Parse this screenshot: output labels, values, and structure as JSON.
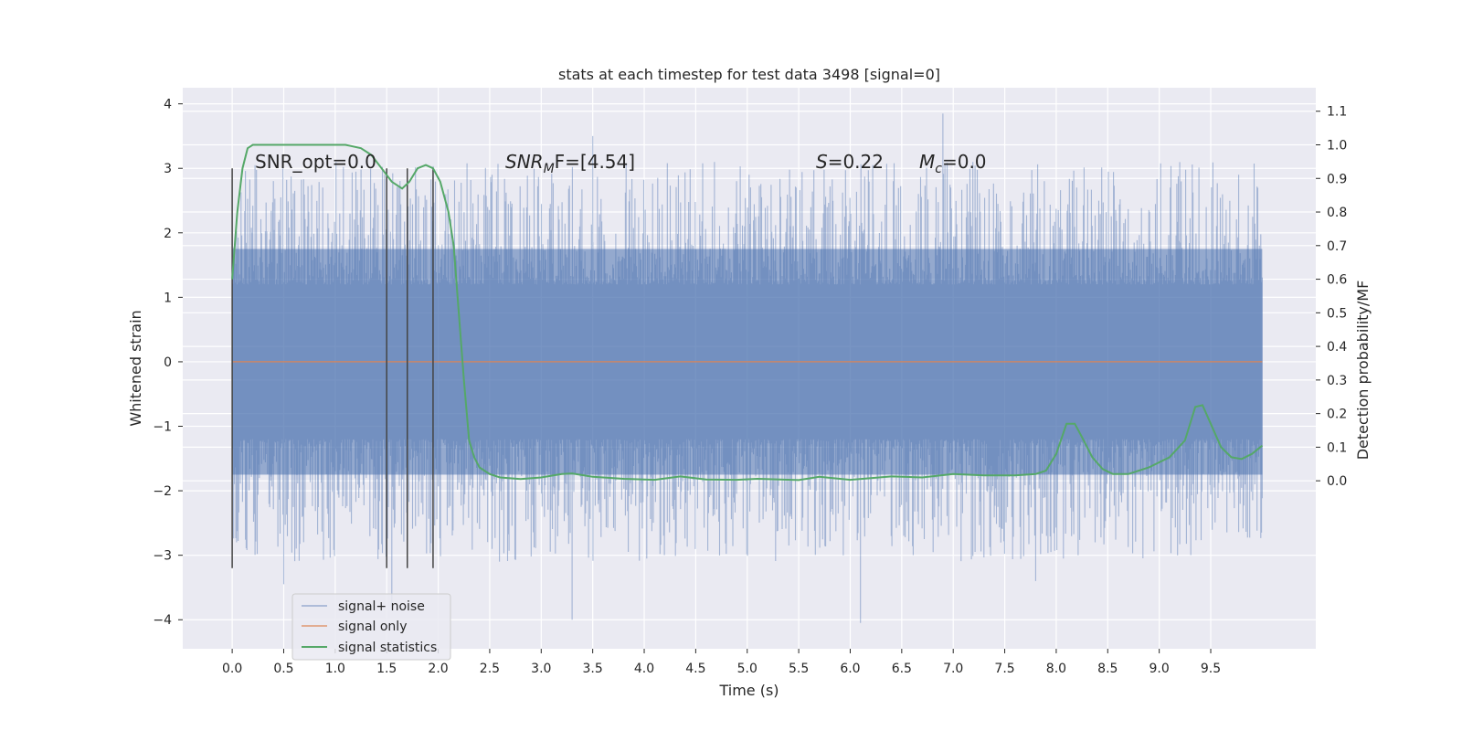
{
  "chart_data": {
    "type": "line",
    "title": "stats at each timestep for test data 3498 [signal=0]",
    "xlabel": "Time (s)",
    "ylabel": "Whitened strain",
    "ylabel_right": "Detection probability/MF",
    "xlim": [
      -0.48,
      10.52
    ],
    "ylim": [
      -4.45,
      4.25
    ],
    "ylim_right": [
      -0.5,
      1.17
    ],
    "x_ticks": [
      "0.0",
      "0.5",
      "1.0",
      "1.5",
      "2.0",
      "2.5",
      "3.0",
      "3.5",
      "4.0",
      "4.5",
      "5.0",
      "5.5",
      "6.0",
      "6.5",
      "7.0",
      "7.5",
      "8.0",
      "8.5",
      "9.0",
      "9.5"
    ],
    "y_ticks": [
      "4",
      "3",
      "2",
      "1",
      "0",
      "−1",
      "−2",
      "−3",
      "−4"
    ],
    "y_ticks_right": [
      "1.1",
      "1.0",
      "0.9",
      "0.8",
      "0.7",
      "0.6",
      "0.5",
      "0.4",
      "0.3",
      "0.2",
      "0.1",
      "0.0"
    ],
    "grid": true,
    "legend_placement": "lower-left",
    "legend": [
      "signal+ noise",
      "signal only",
      "signal statistics"
    ],
    "annotations": {
      "snr_opt": "SNR_opt=0.0",
      "snr_mf_main": "SNR",
      "snr_mf_sub": "M",
      "snr_mf_rest": "F=[4.54]",
      "stat_main": "S",
      "stat_rest": "=0.22",
      "mc_main": "M",
      "mc_sub": "c",
      "mc_rest": "=0.0"
    },
    "vlines_x": [
      0.0,
      1.5,
      1.7,
      1.95
    ],
    "vlines_y": [
      -3.2,
      3.0
    ],
    "series": [
      {
        "name": "signal+ noise",
        "x_range": [
          0.0,
          10.0
        ],
        "band": [
          -1.75,
          1.75
        ],
        "spike_extremes": [
          [
            0.5,
            -3.45
          ],
          [
            1.55,
            -3.85
          ],
          [
            3.3,
            -4.0
          ],
          [
            3.5,
            3.5
          ],
          [
            6.1,
            -4.05
          ],
          [
            6.9,
            3.85
          ],
          [
            7.8,
            -3.4
          ]
        ],
        "color": "#4c72b0"
      },
      {
        "name": "signal only",
        "x": [
          0.0,
          10.0
        ],
        "y": [
          0.0,
          0.0
        ],
        "color": "#dd8452"
      },
      {
        "name": "signal statistics",
        "axis": "right",
        "color": "#55a868",
        "x": [
          0.0,
          0.05,
          0.1,
          0.15,
          0.2,
          0.3,
          0.5,
          0.7,
          0.9,
          1.1,
          1.25,
          1.35,
          1.45,
          1.55,
          1.65,
          1.72,
          1.8,
          1.88,
          1.95,
          2.02,
          2.1,
          2.15,
          2.2,
          2.25,
          2.3,
          2.35,
          2.4,
          2.5,
          2.6,
          2.8,
          3.0,
          3.2,
          3.3,
          3.5,
          3.8,
          4.1,
          4.35,
          4.6,
          4.9,
          5.1,
          5.5,
          5.7,
          6.0,
          6.4,
          6.7,
          7.0,
          7.3,
          7.6,
          7.8,
          7.9,
          8.0,
          8.1,
          8.18,
          8.25,
          8.35,
          8.45,
          8.55,
          8.7,
          8.9,
          9.1,
          9.25,
          9.35,
          9.42,
          9.5,
          9.6,
          9.7,
          9.8,
          9.9,
          10.0
        ],
        "y": [
          0.6,
          0.8,
          0.93,
          0.99,
          1.0,
          1.0,
          1.0,
          1.0,
          1.0,
          1.0,
          0.99,
          0.97,
          0.93,
          0.89,
          0.87,
          0.89,
          0.93,
          0.94,
          0.93,
          0.89,
          0.8,
          0.7,
          0.5,
          0.3,
          0.12,
          0.07,
          0.04,
          0.02,
          0.01,
          0.005,
          0.01,
          0.02,
          0.022,
          0.012,
          0.006,
          0.003,
          0.013,
          0.004,
          0.003,
          0.006,
          0.002,
          0.012,
          0.003,
          0.013,
          0.01,
          0.02,
          0.016,
          0.016,
          0.02,
          0.03,
          0.08,
          0.17,
          0.17,
          0.13,
          0.07,
          0.035,
          0.02,
          0.02,
          0.04,
          0.07,
          0.12,
          0.22,
          0.225,
          0.17,
          0.1,
          0.07,
          0.065,
          0.08,
          0.105
        ]
      }
    ]
  }
}
